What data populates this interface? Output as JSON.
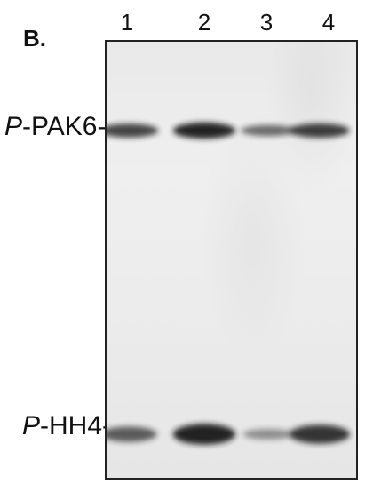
{
  "panel_label": "B.",
  "lanes": [
    "1",
    "2",
    "3",
    "4"
  ],
  "band_labels": {
    "pak6": {
      "prefix": "P",
      "name": "-PAK6-"
    },
    "hh4": {
      "prefix": "P",
      "name": "-HH4-"
    }
  },
  "bands": {
    "pak6": [
      0.75,
      1.0,
      0.45,
      0.8
    ],
    "hh4": [
      0.55,
      1.0,
      0.15,
      0.85
    ]
  },
  "colors": {
    "band": "#1a1a1a",
    "gel": "#ececec",
    "frame": "#222222"
  }
}
